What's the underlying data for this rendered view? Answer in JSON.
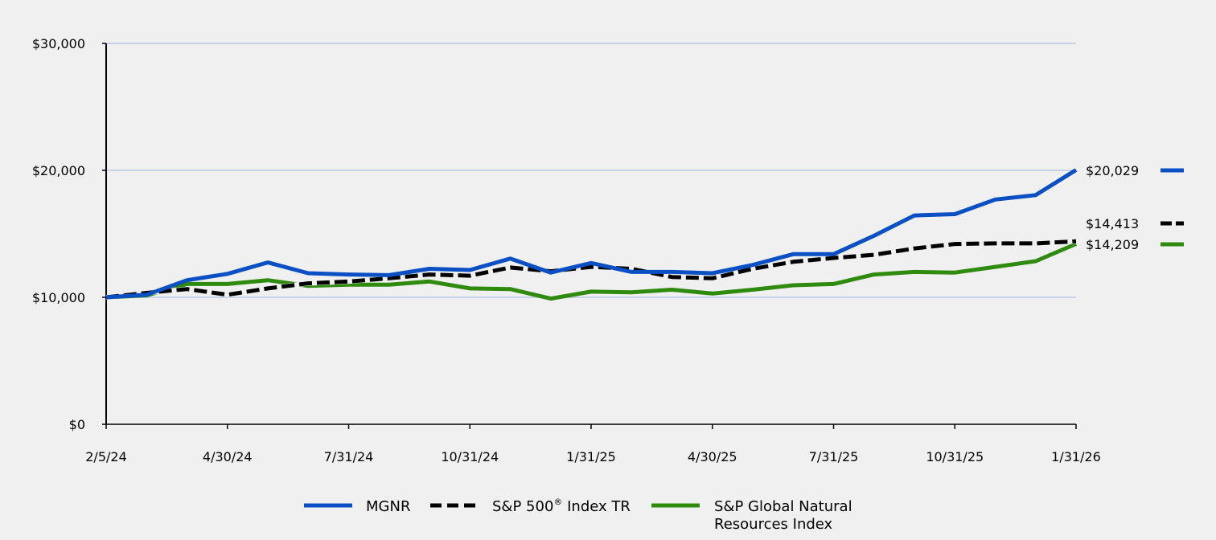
{
  "chart_data": {
    "type": "line",
    "title": "",
    "xlabel": "",
    "ylabel": "",
    "ylim": [
      0,
      30000
    ],
    "grid": true,
    "x": [
      "2/5/24",
      "2/29/24",
      "3/31/24",
      "4/30/24",
      "5/31/24",
      "6/30/24",
      "7/31/24",
      "8/31/24",
      "9/30/24",
      "10/31/24",
      "11/30/24",
      "12/31/24",
      "1/31/25",
      "2/28/25",
      "3/31/25",
      "4/30/25",
      "5/31/25",
      "6/30/25",
      "7/31/25",
      "8/31/25",
      "9/30/25",
      "10/31/25",
      "11/30/25",
      "12/31/25",
      "1/31/26"
    ],
    "x_tick_labels": [
      "2/5/24",
      "4/30/24",
      "7/31/24",
      "10/31/24",
      "1/31/25",
      "4/30/25",
      "7/31/25",
      "10/31/25",
      "1/31/26"
    ],
    "y_tick_labels": [
      "$0",
      "$10,000",
      "$20,000",
      "$30,000"
    ],
    "y_ticks": [
      0,
      10000,
      20000,
      30000
    ],
    "series": [
      {
        "name": "MGNR",
        "color": "#0a4fc4",
        "dash": "solid",
        "end_label": "$20,029",
        "values": [
          10000,
          10200,
          11350,
          11850,
          12750,
          11900,
          11800,
          11750,
          12250,
          12150,
          13050,
          11950,
          12700,
          12000,
          12000,
          11900,
          12550,
          13400,
          13400,
          14850,
          16450,
          16550,
          17700,
          18050,
          20029
        ]
      },
      {
        "name": "S&P 500® Index TR",
        "legend_main": "S&P 500",
        "legend_sup": "®",
        "legend_rest": " Index TR",
        "color": "#000000",
        "dash": "dashed",
        "end_label": "$14,413",
        "values": [
          10000,
          10350,
          10650,
          10200,
          10700,
          11100,
          11250,
          11500,
          11800,
          11700,
          12350,
          12050,
          12400,
          12250,
          11600,
          11500,
          12250,
          12800,
          13100,
          13350,
          13850,
          14200,
          14250,
          14250,
          14413
        ]
      },
      {
        "name": "S&P Global Natural Resources Index",
        "legend_line1": "S&P Global Natural",
        "legend_line2": "Resources Index",
        "color": "#2e8b0e",
        "dash": "solid",
        "end_label": "$14,209",
        "values": [
          10000,
          10150,
          11050,
          11050,
          11350,
          10900,
          11000,
          11000,
          11250,
          10700,
          10650,
          9900,
          10450,
          10400,
          10600,
          10300,
          10600,
          10950,
          11050,
          11800,
          12000,
          11950,
          12400,
          12850,
          14209
        ]
      }
    ],
    "legend_position": "bottom-center"
  }
}
